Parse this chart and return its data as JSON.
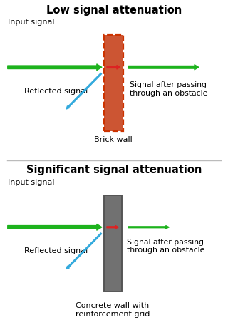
{
  "title1": "Low signal attenuation",
  "title2": "Significant signal attenuation",
  "label_input": "Input signal",
  "label_reflected": "Reflected signal",
  "label_after": "Signal after passing\nthrough an obstacle",
  "label_brick": "Brick wall",
  "label_concrete": "Concrete wall with\nreinforcement grid",
  "bg_color": "#ffffff",
  "green_color": "#1db31d",
  "red_color": "#dd2222",
  "blue_color": "#33aadd",
  "brick_fill": "#cc5533",
  "brick_edge": "#cc3300",
  "concrete_fill": "#717171",
  "concrete_edge": "#555555",
  "divider_color": "#bbbbbb"
}
